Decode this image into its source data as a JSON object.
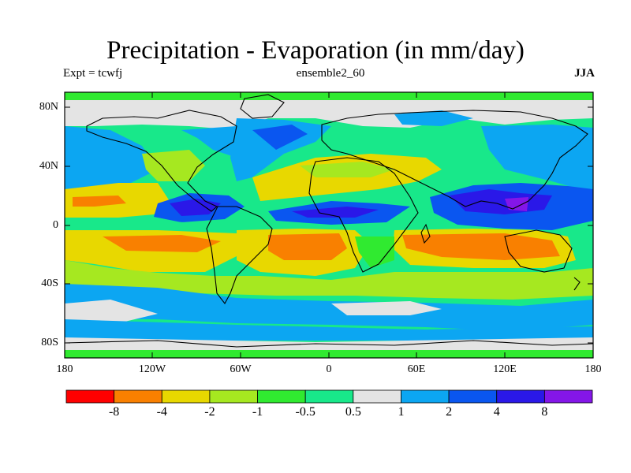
{
  "title": "Precipitation - Evaporation (in mm/day)",
  "experiment_label": "Expt = tcwfj",
  "ensemble_label": "ensemble2_60",
  "season_label": "JJA",
  "lat_ticks": [
    "80N",
    "40N",
    "0",
    "40S",
    "80S"
  ],
  "lon_ticks": [
    "180",
    "120W",
    "60W",
    "0",
    "60E",
    "120E",
    "180"
  ],
  "colorbar": {
    "colors": [
      "#ff0000",
      "#f98000",
      "#e8d800",
      "#a6e820",
      "#30ea30",
      "#18e88a",
      "#e4e4e4",
      "#0ca6f2",
      "#0a56f0",
      "#2a18e8",
      "#8416e8"
    ],
    "tick_labels": [
      "-8",
      "-4",
      "-2",
      "-1",
      "-0.5",
      "0.5",
      "1",
      "2",
      "4",
      "8"
    ]
  }
}
